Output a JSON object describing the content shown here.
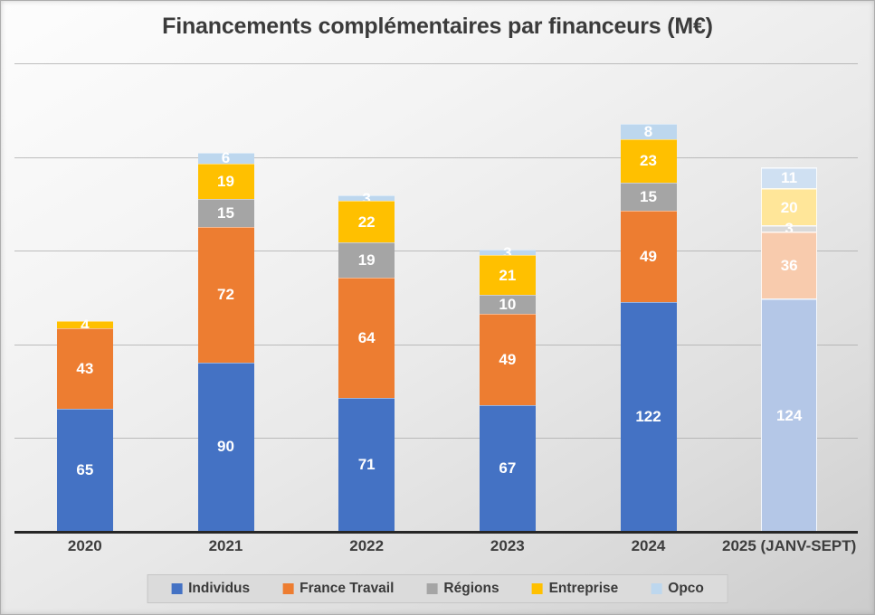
{
  "chart_data": {
    "type": "bar",
    "stacked": true,
    "title": "Financements complémentaires par financeurs (M€)",
    "categories": [
      "2020",
      "2021",
      "2022",
      "2023",
      "2024",
      "2025 (JANV-SEPT)"
    ],
    "series": [
      {
        "name": "Individus",
        "color": "#4472C4",
        "faded_color": "#B4C7E7",
        "values": [
          65,
          90,
          71,
          67,
          122,
          124
        ]
      },
      {
        "name": "France Travail",
        "color": "#ED7D31",
        "faded_color": "#F8CBAD",
        "values": [
          43,
          72,
          64,
          49,
          49,
          36
        ]
      },
      {
        "name": "Régions",
        "color": "#A5A5A5",
        "faded_color": "#D9D9D9",
        "values": [
          0,
          15,
          19,
          10,
          15,
          3
        ]
      },
      {
        "name": "Entreprise",
        "color": "#FFC000",
        "faded_color": "#FFE699",
        "values": [
          4,
          19,
          22,
          21,
          23,
          20
        ]
      },
      {
        "name": "Opco",
        "color": "#BDD7EE",
        "faded_color": "#CFE0F2",
        "values": [
          0,
          6,
          3,
          3,
          8,
          11
        ]
      }
    ],
    "faded_category_indices": [
      5
    ],
    "ylim": [
      0,
      250
    ],
    "gridline_step": 50,
    "grid": true,
    "y_axis_labels_visible": false,
    "data_label_color": "#FFFFFF",
    "legend_position": "bottom",
    "totals": [
      112,
      202,
      179,
      150,
      217,
      194
    ]
  }
}
